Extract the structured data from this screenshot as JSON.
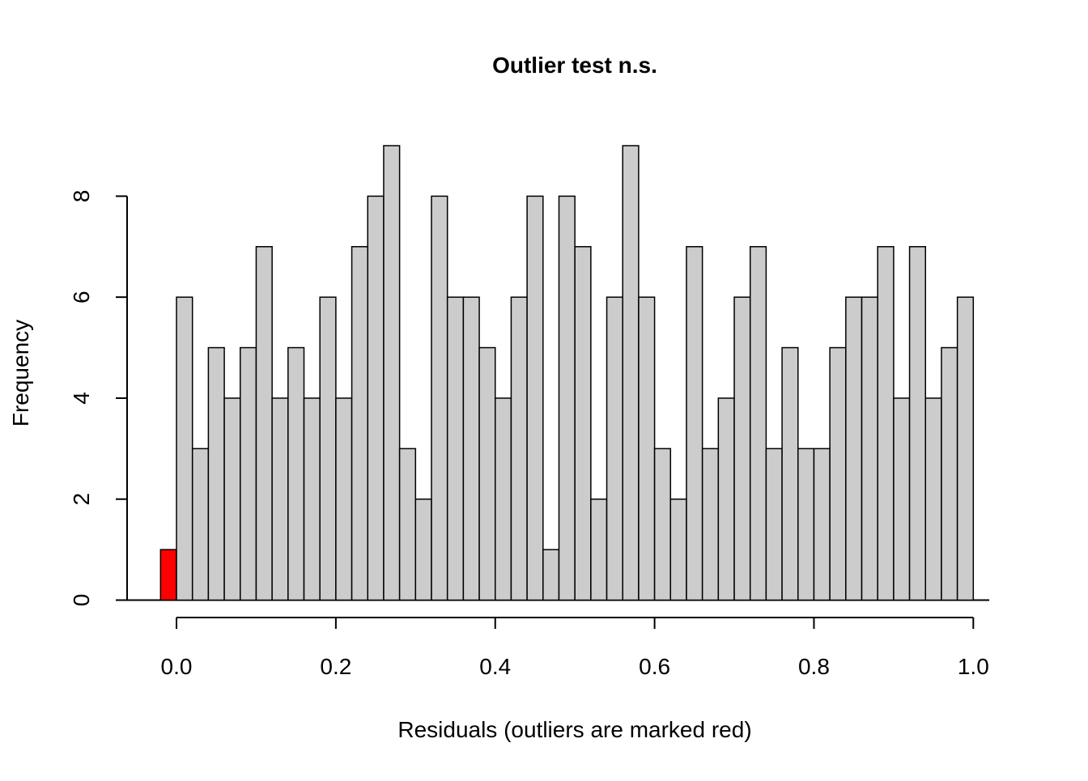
{
  "chart_data": {
    "type": "histogram",
    "title": "Outlier test n.s.",
    "xlabel": "Residuals (outliers are marked red)",
    "ylabel": "Frequency",
    "bins": [
      -0.02,
      0,
      0.02,
      0.04,
      0.06,
      0.08,
      0.1,
      0.12,
      0.14,
      0.16,
      0.18,
      0.2,
      0.22,
      0.24,
      0.26,
      0.28,
      0.3,
      0.32,
      0.34,
      0.36,
      0.38,
      0.4,
      0.42,
      0.44,
      0.46,
      0.48,
      0.5,
      0.52,
      0.54,
      0.56,
      0.58,
      0.6,
      0.62,
      0.64,
      0.66,
      0.68,
      0.7,
      0.72,
      0.74,
      0.76,
      0.78,
      0.8,
      0.82,
      0.84,
      0.86,
      0.88,
      0.9,
      0.92,
      0.94,
      0.96,
      0.98,
      1.0
    ],
    "values": [
      1,
      6,
      3,
      5,
      4,
      5,
      7,
      4,
      5,
      4,
      6,
      4,
      7,
      8,
      9,
      3,
      2,
      8,
      6,
      6,
      5,
      4,
      6,
      8,
      1,
      8,
      7,
      2,
      6,
      9,
      6,
      3,
      2,
      7,
      3,
      4,
      6,
      7,
      3,
      5,
      3,
      3,
      5,
      6,
      6,
      7,
      4,
      7,
      4,
      5,
      6
    ],
    "colors": [
      "#ff0000",
      "#cccccc",
      "#cccccc",
      "#cccccc",
      "#cccccc",
      "#cccccc",
      "#cccccc",
      "#cccccc",
      "#cccccc",
      "#cccccc",
      "#cccccc",
      "#cccccc",
      "#cccccc",
      "#cccccc",
      "#cccccc",
      "#cccccc",
      "#cccccc",
      "#cccccc",
      "#cccccc",
      "#cccccc",
      "#cccccc",
      "#cccccc",
      "#cccccc",
      "#cccccc",
      "#cccccc",
      "#cccccc",
      "#cccccc",
      "#cccccc",
      "#cccccc",
      "#cccccc",
      "#cccccc",
      "#cccccc",
      "#cccccc",
      "#cccccc",
      "#cccccc",
      "#cccccc",
      "#cccccc",
      "#cccccc",
      "#cccccc",
      "#cccccc",
      "#cccccc",
      "#cccccc",
      "#cccccc",
      "#cccccc",
      "#cccccc",
      "#cccccc",
      "#cccccc",
      "#cccccc",
      "#cccccc",
      "#cccccc",
      "#cccccc"
    ],
    "xlim": [
      -0.062,
      1.02
    ],
    "ylim": [
      0,
      9
    ],
    "xticks": [
      {
        "value": 0,
        "label": "0.0"
      },
      0.2,
      0.4,
      0.6,
      0.8,
      {
        "value": 1,
        "label": "1.0"
      }
    ],
    "yticks": [
      0,
      2,
      4,
      6,
      8
    ]
  }
}
